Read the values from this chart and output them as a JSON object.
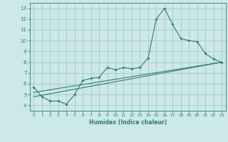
{
  "title": "",
  "xlabel": "Humidex (Indice chaleur)",
  "background_color": "#cce8e8",
  "grid_color": "#aacccc",
  "line_color": "#2e7d6e",
  "xlim": [
    -0.5,
    23.5
  ],
  "ylim": [
    3.5,
    13.5
  ],
  "xticks": [
    0,
    1,
    2,
    3,
    4,
    5,
    6,
    7,
    8,
    9,
    10,
    11,
    12,
    13,
    14,
    15,
    16,
    17,
    18,
    19,
    20,
    21,
    22,
    23
  ],
  "yticks": [
    4,
    5,
    6,
    7,
    8,
    9,
    10,
    11,
    12,
    13
  ],
  "line1_x": [
    0,
    1,
    2,
    3,
    4,
    5,
    6,
    7,
    8,
    9,
    10,
    11,
    12,
    13,
    14,
    15,
    16,
    17,
    18,
    19,
    20,
    21,
    22,
    23
  ],
  "line1_y": [
    5.7,
    4.8,
    4.4,
    4.4,
    4.1,
    5.0,
    6.3,
    6.5,
    6.6,
    7.5,
    7.3,
    7.5,
    7.4,
    7.5,
    8.4,
    12.0,
    13.0,
    11.5,
    10.2,
    10.0,
    9.9,
    8.8,
    8.3,
    8.0
  ],
  "line2_x": [
    0,
    23
  ],
  "line2_y": [
    5.2,
    8.0
  ],
  "line3_x": [
    0,
    23
  ],
  "line3_y": [
    4.8,
    8.0
  ]
}
